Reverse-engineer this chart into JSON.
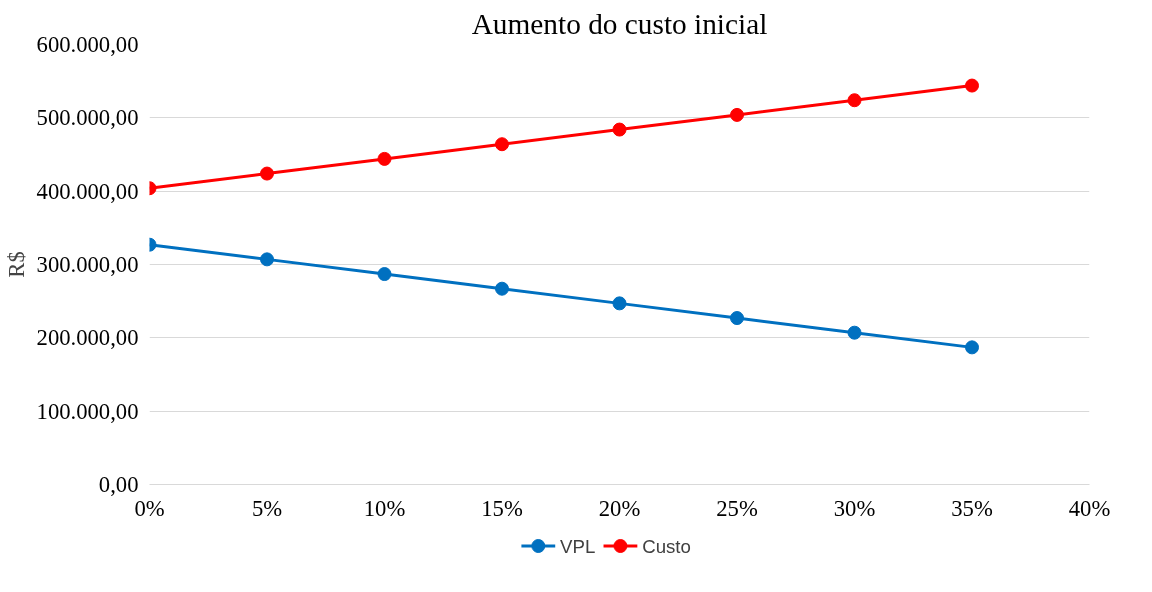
{
  "chart_data": {
    "type": "line",
    "title": "Aumento do custo inicial",
    "ylabel": "R$",
    "categories": [
      "0%",
      "5%",
      "10%",
      "15%",
      "20%",
      "25%",
      "30%",
      "35%",
      "40%"
    ],
    "series": [
      {
        "name": "VPL",
        "color": "#0070c0",
        "values": [
          327000,
          307000,
          287000,
          267000,
          247000,
          227000,
          207000,
          187000,
          null
        ]
      },
      {
        "name": "Custo",
        "color": "#ff0000",
        "values": [
          404000,
          424000,
          444000,
          464000,
          484000,
          504000,
          524000,
          544000,
          null
        ]
      }
    ],
    "ylim": [
      0,
      600000
    ],
    "yticks": [
      {
        "value": 0,
        "label": "0,00"
      },
      {
        "value": 100000,
        "label": "100.000,00"
      },
      {
        "value": 200000,
        "label": "200.000,00"
      },
      {
        "value": 300000,
        "label": "300.000,00"
      },
      {
        "value": 400000,
        "label": "400.000,00"
      },
      {
        "value": 500000,
        "label": "500.000,00"
      },
      {
        "value": 600000,
        "label": "600.000,00"
      }
    ],
    "grid": "y",
    "legend": "bottom",
    "marker": "circle",
    "line_style": "solid"
  }
}
